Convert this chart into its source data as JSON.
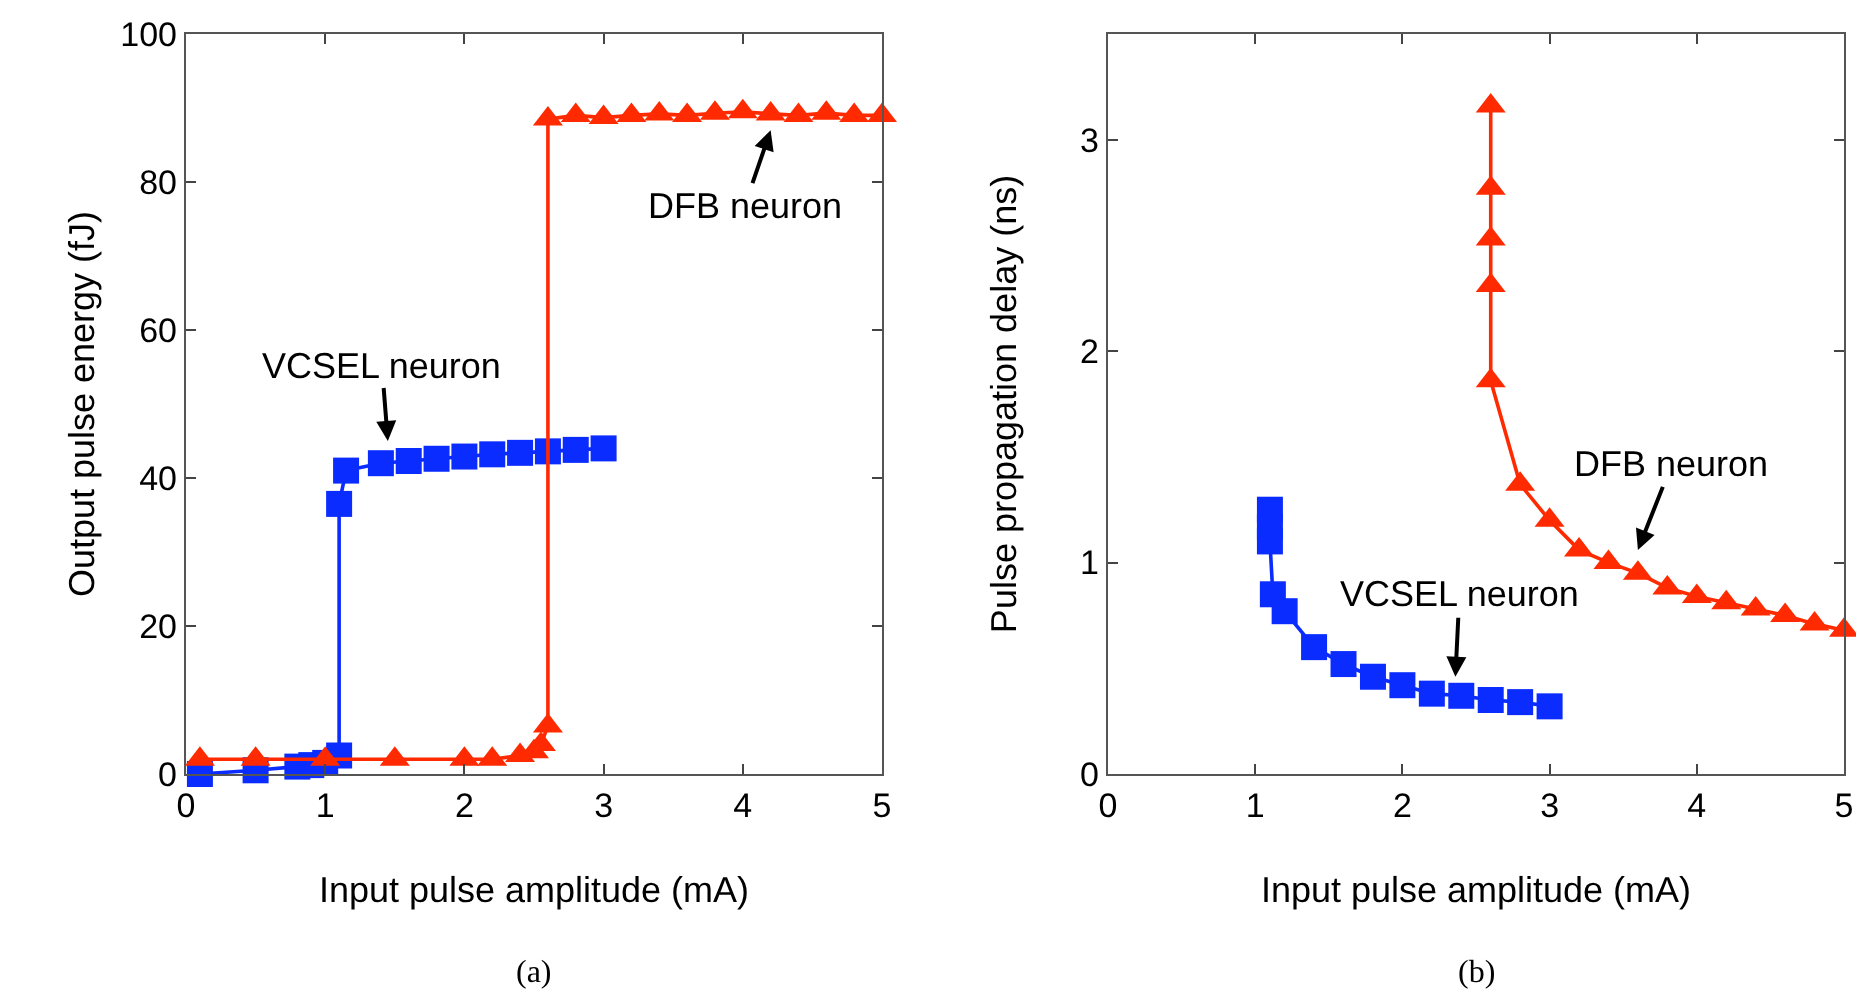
{
  "chart_data": [
    {
      "type": "line",
      "xlabel": "Input pulse amplitude (mA)",
      "ylabel": "Output pulse energy (fJ)",
      "xlim": [
        0,
        5
      ],
      "ylim": [
        0,
        100
      ],
      "xticks": [
        0,
        1,
        2,
        3,
        4,
        5
      ],
      "yticks": [
        0,
        20,
        40,
        60,
        80,
        100
      ],
      "series": [
        {
          "color": "#0a2cff",
          "marker": "square",
          "x": [
            0.1,
            0.5,
            0.8,
            0.9,
            1.0,
            1.1,
            1.1,
            1.15,
            1.4,
            1.6,
            1.8,
            2.0,
            2.2,
            2.4,
            2.6,
            2.8,
            3.0
          ],
          "values": [
            0,
            0.5,
            1,
            1.2,
            1.5,
            2.5,
            36.5,
            41,
            42,
            42.3,
            42.6,
            42.9,
            43.2,
            43.4,
            43.6,
            43.8,
            44
          ]
        },
        {
          "color": "#ff2a00",
          "marker": "triangle",
          "x": [
            0.1,
            0.5,
            1.0,
            1.5,
            2.0,
            2.2,
            2.4,
            2.5,
            2.55,
            2.6,
            2.6,
            2.8,
            3.0,
            3.2,
            3.4,
            3.6,
            3.8,
            4.0,
            4.2,
            4.4,
            4.6,
            4.8,
            5.0
          ],
          "values": [
            2,
            2,
            2,
            2,
            2,
            2,
            2.5,
            3,
            4,
            6.5,
            88.5,
            89,
            88.7,
            89,
            89.2,
            89,
            89.3,
            89.5,
            89.2,
            89,
            89.3,
            89,
            89
          ]
        }
      ],
      "annotations": [
        {
          "text": "VCSEL neuron",
          "x": 1.45,
          "y": 45
        },
        {
          "text": "DFB neuron",
          "x": 4.2,
          "y": 87
        },
        "(a)"
      ]
    },
    {
      "type": "line",
      "xlabel": "Input pulse amplitude (mA)",
      "ylabel": "Pulse propagation delay (ns)",
      "xlim": [
        0,
        5
      ],
      "ylim": [
        0,
        3.5
      ],
      "xticks": [
        0,
        1,
        2,
        3,
        4,
        5
      ],
      "yticks": [
        0,
        1,
        2,
        3
      ],
      "series": [
        {
          "color": "#0a2cff",
          "marker": "square",
          "x": [
            1.1,
            1.1,
            1.1,
            1.12,
            1.2,
            1.4,
            1.6,
            1.8,
            2.0,
            2.2,
            2.4,
            2.6,
            2.8,
            3.0
          ],
          "values": [
            1.25,
            1.17,
            1.1,
            0.85,
            0.77,
            0.6,
            0.52,
            0.46,
            0.42,
            0.38,
            0.37,
            0.35,
            0.34,
            0.32
          ]
        },
        {
          "color": "#ff2a00",
          "marker": "triangle",
          "x": [
            2.6,
            2.6,
            2.6,
            2.6,
            2.6,
            2.8,
            3.0,
            3.2,
            3.4,
            3.6,
            3.8,
            4.0,
            4.2,
            4.4,
            4.6,
            4.8,
            5.0
          ],
          "values": [
            3.16,
            2.77,
            2.53,
            2.31,
            1.86,
            1.37,
            1.2,
            1.06,
            1.0,
            0.95,
            0.88,
            0.84,
            0.81,
            0.78,
            0.75,
            0.71,
            0.68
          ]
        }
      ],
      "annotations": [
        {
          "text": "VCSEL neuron",
          "x": 2.36,
          "y": 0.46
        },
        {
          "text": "DFB neuron",
          "x": 3.6,
          "y": 1.06
        },
        "(b)"
      ]
    }
  ]
}
